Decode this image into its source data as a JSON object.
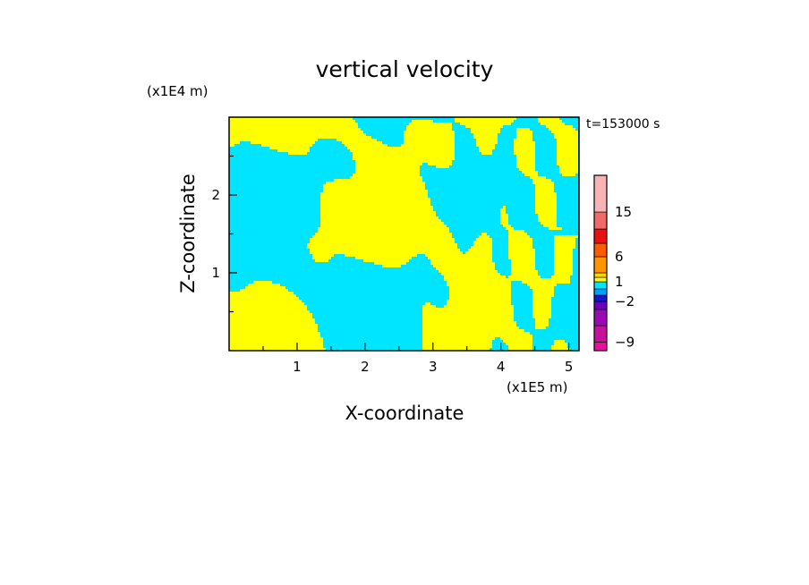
{
  "chart_data": {
    "type": "heatmap",
    "title": "vertical velocity",
    "xlabel": "X-coordinate",
    "ylabel": "Z-coordinate",
    "x_unit": "(x1E5 m)",
    "y_unit": "(x1E4 m)",
    "time_label": "t=153000 s",
    "xlim": [
      0,
      5.15
    ],
    "ylim": [
      0,
      3.0
    ],
    "x_ticks": [
      1,
      2,
      3,
      4,
      5
    ],
    "x_tick_labels": [
      "1",
      "2",
      "3",
      "4",
      "5"
    ],
    "y_ticks": [
      1,
      2
    ],
    "y_tick_labels": [
      "1",
      "2"
    ],
    "field_colors": {
      "negative": "#00e5ff",
      "positive": "#ffff00"
    },
    "colorbar": {
      "levels": [
        -12,
        -9,
        -6,
        -4,
        -2,
        -1,
        0,
        1,
        2,
        4,
        6,
        9,
        12,
        15,
        20
      ],
      "colors": [
        "#e8109a",
        "#c8109f",
        "#9a0ab4",
        "#6a00b8",
        "#1018d8",
        "#00a0ff",
        "#00e5ff",
        "#ffff00",
        "#ffd200",
        "#ff9600",
        "#ff5a00",
        "#e81010",
        "#f06a6a",
        "#f8b4b4",
        "#fde8e8"
      ],
      "tick_labels": [
        {
          "value": 15,
          "label": "15"
        },
        {
          "value": 6,
          "label": "6"
        },
        {
          "value": 1,
          "label": "1"
        },
        {
          "value": -2,
          "label": "−2"
        },
        {
          "value": -9,
          "label": "−9"
        }
      ]
    }
  }
}
